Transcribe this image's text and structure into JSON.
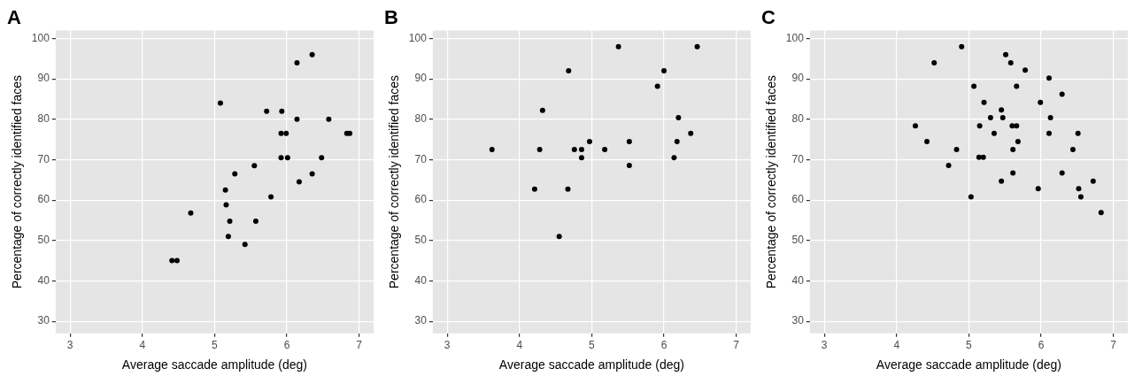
{
  "chart_data": [
    {
      "type": "scatter",
      "title": "A",
      "xlabel": "Average saccade amplitude (deg)",
      "ylabel": "Percentage of correctly identified faces",
      "xlim": [
        2.8,
        7.2
      ],
      "ylim": [
        27,
        102
      ],
      "xticks": [
        3,
        4,
        5,
        6,
        7
      ],
      "yticks": [
        30,
        40,
        50,
        60,
        70,
        80,
        90,
        100
      ],
      "grid": true,
      "marker": "circle",
      "legend": false,
      "series": [
        {
          "color": "#000000",
          "x": [
            6.35,
            6.14,
            5.08,
            5.72,
            5.93,
            6.14,
            6.58,
            5.92,
            5.99,
            6.83,
            6.87,
            5.92,
            6.01,
            6.48,
            5.55,
            5.28,
            6.35,
            6.17,
            5.15,
            5.78,
            5.16,
            4.67,
            5.21,
            5.57,
            5.19,
            5.42,
            4.41,
            4.48
          ],
          "values": [
            96,
            94,
            84,
            82,
            82,
            80,
            80,
            76.5,
            76.5,
            76.5,
            76.5,
            70.5,
            70.5,
            70.5,
            68.5,
            66.5,
            66.5,
            64.5,
            62.5,
            60.8,
            58.8,
            56.8,
            54.8,
            54.8,
            51,
            49,
            45,
            45
          ]
        }
      ]
    },
    {
      "type": "scatter",
      "title": "B",
      "xlabel": "Average saccade amplitude (deg)",
      "ylabel": "Percentage of correctly identified faces",
      "xlim": [
        2.8,
        7.2
      ],
      "ylim": [
        27,
        102
      ],
      "xticks": [
        3,
        4,
        5,
        6,
        7
      ],
      "yticks": [
        30,
        40,
        50,
        60,
        70,
        80,
        90,
        100
      ],
      "grid": true,
      "marker": "circle",
      "legend": false,
      "series": [
        {
          "color": "#000000",
          "x": [
            5.37,
            6.46,
            4.68,
            6.0,
            5.91,
            4.32,
            6.2,
            6.37,
            4.97,
            5.52,
            6.18,
            3.62,
            4.28,
            4.76,
            4.86,
            5.18,
            4.86,
            6.14,
            5.52,
            4.21,
            4.67,
            4.55
          ],
          "values": [
            98,
            98,
            92,
            92,
            88.2,
            82.2,
            80.4,
            76.5,
            74.5,
            74.5,
            74.5,
            72.5,
            72.5,
            72.5,
            72.5,
            72.5,
            70.5,
            70.5,
            68.6,
            62.7,
            62.7,
            51
          ]
        }
      ]
    },
    {
      "type": "scatter",
      "title": "C",
      "xlabel": "Average saccade amplitude (deg)",
      "ylabel": "Percentage of correctly identified faces",
      "xlim": [
        2.8,
        7.2
      ],
      "ylim": [
        27,
        102
      ],
      "xticks": [
        3,
        4,
        5,
        6,
        7
      ],
      "yticks": [
        30,
        40,
        50,
        60,
        70,
        80,
        90,
        100
      ],
      "grid": true,
      "marker": "circle",
      "legend": false,
      "series": [
        {
          "color": "#000000",
          "x": [
            4.9,
            5.51,
            4.52,
            5.58,
            5.78,
            6.11,
            5.07,
            5.66,
            6.29,
            5.21,
            5.99,
            5.45,
            5.3,
            5.47,
            6.13,
            4.26,
            5.15,
            5.6,
            5.66,
            5.35,
            6.11,
            6.51,
            4.42,
            5.68,
            4.83,
            5.61,
            6.44,
            5.14,
            5.2,
            4.72,
            5.61,
            6.29,
            5.45,
            6.72,
            5.96,
            6.52,
            5.03,
            6.55,
            6.83
          ],
          "values": [
            98,
            96,
            94,
            94,
            92.2,
            90.2,
            88.2,
            88.2,
            86.2,
            84.2,
            84.2,
            82.3,
            80.4,
            80.4,
            80.4,
            78.4,
            78.4,
            78.4,
            78.4,
            76.5,
            76.5,
            76.5,
            74.5,
            74.5,
            72.5,
            72.5,
            72.5,
            70.6,
            70.6,
            68.6,
            66.7,
            66.7,
            64.7,
            64.7,
            62.8,
            62.8,
            60.8,
            60.8,
            56.9
          ]
        }
      ]
    }
  ]
}
